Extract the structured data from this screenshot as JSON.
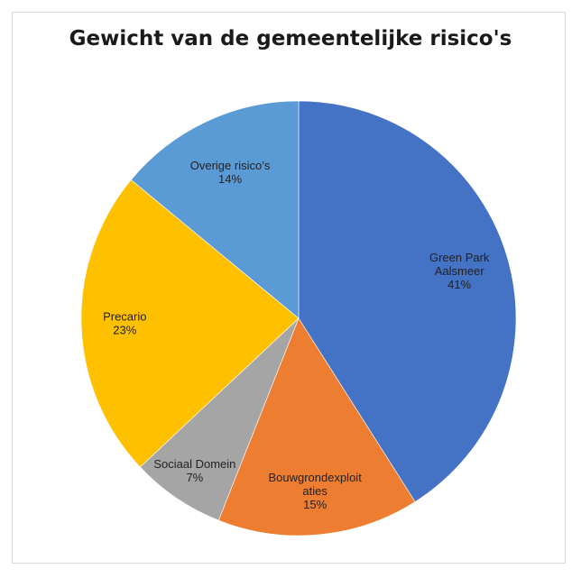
{
  "chart_data": {
    "type": "pie",
    "title": "Gewicht van de gemeentelijke risico's",
    "start_angle_deg": 0,
    "direction": "clockwise",
    "slices": [
      {
        "label_lines": [
          "Green Park",
          "Aalsmeer",
          "41%"
        ],
        "value": 41,
        "color": "#4472C4"
      },
      {
        "label_lines": [
          "Bouwgrondexploit",
          "aties",
          "15%"
        ],
        "value": 15,
        "color": "#ED7D31"
      },
      {
        "label_lines": [
          "Sociaal Domein",
          "7%"
        ],
        "value": 7,
        "color": "#A5A5A5"
      },
      {
        "label_lines": [
          "Precario",
          "23%"
        ],
        "value": 23,
        "color": "#FFC000"
      },
      {
        "label_lines": [
          "Overige risico’s",
          "14%"
        ],
        "value": 14,
        "color": "#5B9BD5"
      }
    ]
  }
}
